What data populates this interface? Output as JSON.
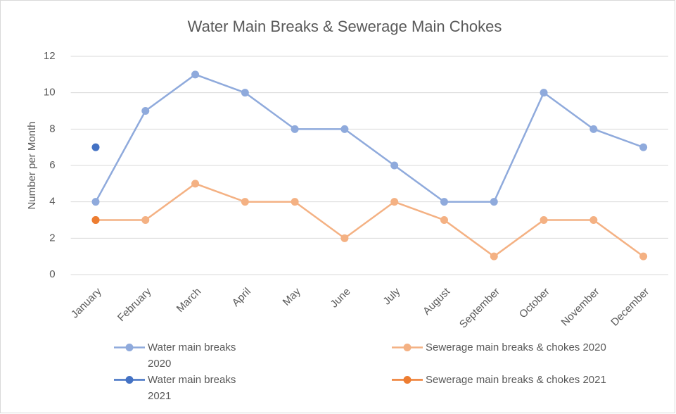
{
  "chart_data": {
    "type": "line",
    "title": "Water Main Breaks & Sewerage Main Chokes",
    "y_label": "Number per Month",
    "categories": [
      "January",
      "February",
      "March",
      "April",
      "May",
      "June",
      "July",
      "August",
      "September",
      "October",
      "November",
      "December"
    ],
    "series": [
      {
        "name": "Water main breaks 2020",
        "color": "#8faadc",
        "values": [
          4,
          9,
          11,
          10,
          8,
          8,
          6,
          4,
          4,
          10,
          8,
          7
        ]
      },
      {
        "name": "Sewerage main breaks & chokes 2020",
        "color": "#f4b183",
        "values": [
          3,
          3,
          5,
          4,
          4,
          2,
          4,
          3,
          1,
          3,
          3,
          1
        ]
      },
      {
        "name": "Water main breaks 2021",
        "color": "#4472c4",
        "values": [
          7,
          null,
          null,
          null,
          null,
          null,
          null,
          null,
          null,
          null,
          null,
          null
        ]
      },
      {
        "name": "Sewerage main breaks & chokes 2021",
        "color": "#ed7d31",
        "values": [
          3,
          null,
          null,
          null,
          null,
          null,
          null,
          null,
          null,
          null,
          null,
          null
        ]
      }
    ],
    "ylim": [
      0,
      12
    ],
    "yticks": [
      0,
      2,
      4,
      6,
      8,
      10,
      12
    ],
    "grid": true,
    "legend": "bottom"
  }
}
